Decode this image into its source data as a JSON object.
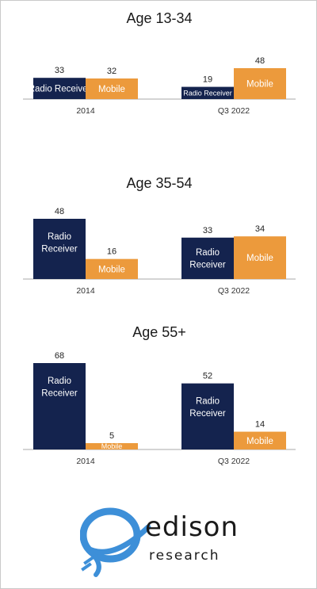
{
  "colors": {
    "radio": "#14234e",
    "mobile": "#ec9a3c",
    "axis": "#aaaaaa",
    "brand_blue": "#3d8fd8"
  },
  "chart_data": [
    {
      "type": "bar",
      "title": "Age 13-34",
      "categories": [
        "2014",
        "Q3 2022"
      ],
      "series": [
        {
          "name": "Radio Receiver",
          "values": [
            33,
            19
          ]
        },
        {
          "name": "Mobile",
          "values": [
            32,
            48
          ]
        }
      ]
    },
    {
      "type": "bar",
      "title": "Age 35-54",
      "categories": [
        "2014",
        "Q3 2022"
      ],
      "series": [
        {
          "name": "Radio Receiver",
          "values": [
            48,
            33
          ]
        },
        {
          "name": "Mobile",
          "values": [
            16,
            34
          ]
        }
      ]
    },
    {
      "type": "bar",
      "title": "Age 55+",
      "categories": [
        "2014",
        "Q3 2022"
      ],
      "series": [
        {
          "name": "Radio Receiver",
          "values": [
            68,
            52
          ]
        },
        {
          "name": "Mobile",
          "values": [
            5,
            14
          ]
        }
      ]
    }
  ],
  "logo": {
    "brand_name": "edison",
    "brand_sub": "research"
  }
}
